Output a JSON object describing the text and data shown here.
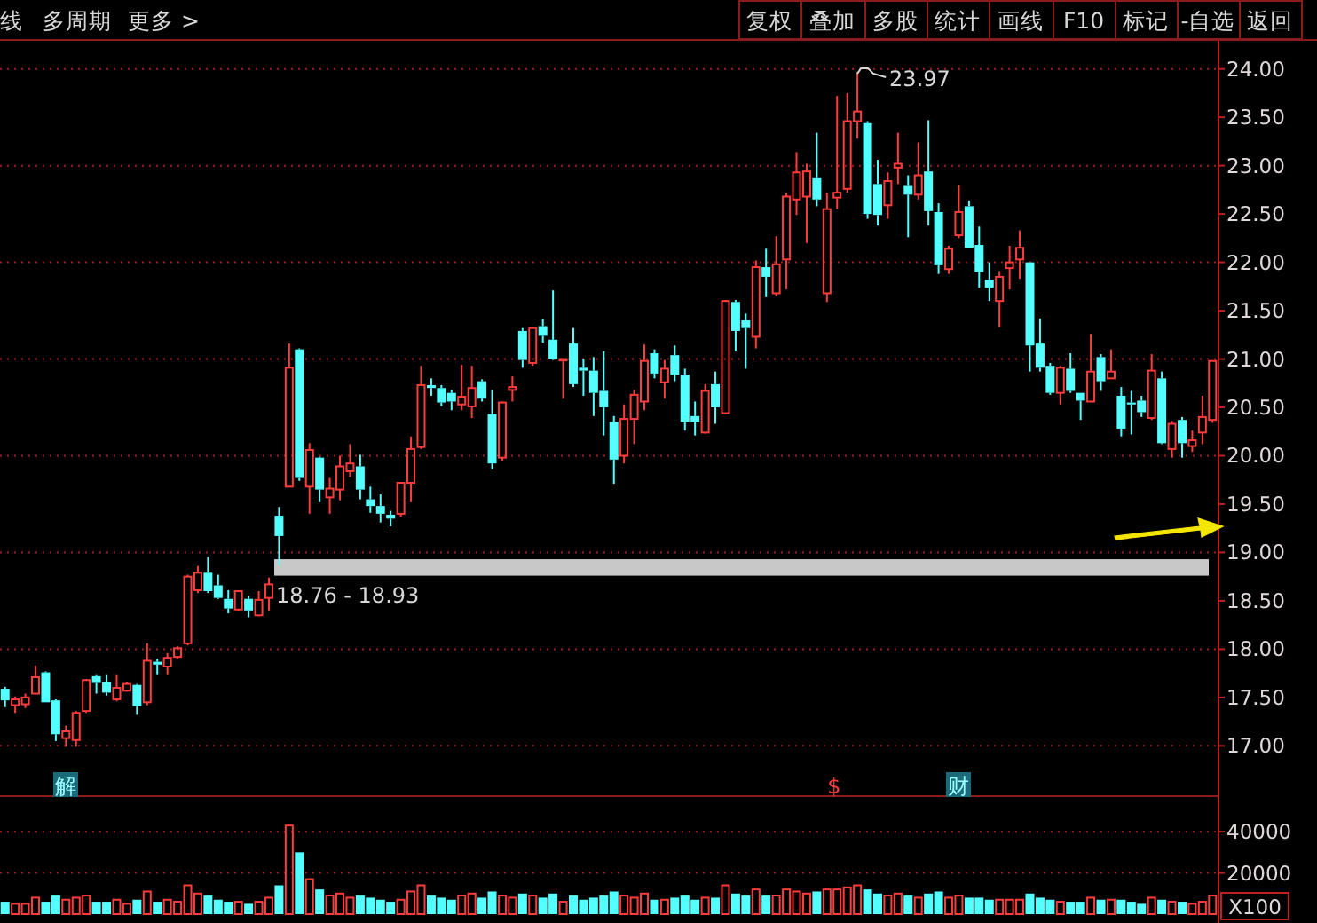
{
  "chart_data": [
    {
      "type": "candlestick",
      "colors": [
        "#54ffff",
        "#ff3c3c",
        "#ff3c3c",
        "#ff3c3c",
        "#54ffff",
        "#54ffff",
        "#ff3c3c",
        "#ff3c3c",
        "#ff3c3c",
        "#54ffff",
        "#54ffff",
        "#ff3c3c",
        "#ff3c3c",
        "#54ffff",
        "#ff3c3c",
        "#54ffff",
        "#ff3c3c",
        "#ff3c3c",
        "#ff3c3c",
        "#ff3c3c",
        "#54ffff",
        "#54ffff",
        "#54ffff",
        "#ff3c3c",
        "#54ffff",
        "#ff3c3c",
        "#ff3c3c",
        "#54ffff",
        "#ff3c3c",
        "#54ffff",
        "#ff3c3c",
        "#54ffff",
        "#ff3c3c",
        "#ff3c3c",
        "#ff3c3c",
        "#54ffff",
        "#54ffff",
        "#54ffff",
        "#54ffff",
        "#ff3c3c",
        "#ff3c3c",
        "#ff3c3c",
        "#54ffff",
        "#54ffff",
        "#54ffff",
        "#ff3c3c",
        "#ff3c3c",
        "#54ffff",
        "#54ffff",
        "#ff3c3c",
        "#ff3c3c",
        "#54ffff",
        "#ff3c3c",
        "#54ffff",
        "#54ffff",
        "#ff3c3c",
        "#54ffff",
        "#54ffff",
        "#54ffff",
        "#54ffff",
        "#54ffff",
        "#ff3c3c",
        "#ff3c3c",
        "#ff3c3c",
        "#54ffff",
        "#ff3c3c",
        "#54ffff",
        "#54ffff",
        "#54ffff",
        "#ff3c3c",
        "#54ffff",
        "#ff3c3c",
        "#54ffff",
        "#54ffff",
        "#ff3c3c",
        "#54ffff",
        "#ff3c3c",
        "#ff3c3c",
        "#ff3c3c",
        "#ff3c3c",
        "#54ffff",
        "#ff3c3c",
        "#ff3c3c",
        "#ff3c3c",
        "#ff3c3c",
        "#54ffff",
        "#54ffff",
        "#ff3c3c",
        "#ff3c3c",
        "#54ffff",
        "#ff3c3c",
        "#54ffff",
        "#54ffff",
        "#ff3c3c",
        "#ff3c3c",
        "#54ffff",
        "#54ffff",
        "#54ffff",
        "#ff3c3c",
        "#ff3c3c",
        "#ff3c3c",
        "#54ffff",
        "#54ffff",
        "#54ffff",
        "#ff3c3c",
        "#54ffff",
        "#54ffff",
        "#ff3c3c",
        "#54ffff",
        "#ff3c3c",
        "#54ffff",
        "#54ffff",
        "#54ffff",
        "#ff3c3c",
        "#54ffff",
        "#ff3c3c",
        "#54ffff",
        "#ff3c3c",
        "#ff3c3c",
        "#ff3c3c"
      ],
      "categories": [
        null,
        null,
        null,
        null,
        null,
        null,
        null,
        null,
        null,
        null,
        null,
        null,
        null,
        null,
        null,
        null,
        null,
        null,
        null,
        null,
        null,
        null,
        null,
        null,
        null,
        null,
        null,
        null,
        null,
        null,
        null,
        null,
        null,
        null,
        null,
        null,
        null,
        null,
        null,
        null,
        null,
        null,
        null,
        null,
        null,
        null,
        null,
        null,
        null,
        null,
        null,
        null,
        null,
        null,
        null,
        null,
        null,
        null,
        null,
        null,
        null,
        null,
        null,
        null,
        null,
        null,
        null,
        null,
        null,
        null,
        null,
        null,
        null,
        null,
        null,
        null,
        null,
        null,
        null,
        null,
        null,
        null,
        null,
        null,
        null,
        null,
        null,
        null,
        null,
        null,
        null,
        null,
        null,
        null,
        null,
        null,
        null,
        null,
        null,
        null,
        null,
        null,
        null,
        null,
        null,
        null,
        null,
        null,
        null,
        null,
        null,
        null,
        null,
        null,
        null,
        null,
        null,
        null,
        null,
        null
      ],
      "ohlc": [
        [
          17.59,
          17.61,
          17.4,
          17.47
        ],
        [
          17.42,
          17.51,
          17.34,
          17.48
        ],
        [
          17.43,
          17.54,
          17.39,
          17.5
        ],
        [
          17.54,
          17.83,
          17.54,
          17.71
        ],
        [
          17.76,
          17.77,
          17.45,
          17.45
        ],
        [
          17.47,
          17.48,
          17.05,
          17.12
        ],
        [
          17.08,
          17.21,
          16.99,
          17.15
        ],
        [
          17.06,
          17.36,
          16.99,
          17.34
        ],
        [
          17.36,
          17.69,
          17.34,
          17.68
        ],
        [
          17.72,
          17.74,
          17.54,
          17.65
        ],
        [
          17.66,
          17.74,
          17.52,
          17.55
        ],
        [
          17.48,
          17.74,
          17.46,
          17.6
        ],
        [
          17.57,
          17.66,
          17.56,
          17.64
        ],
        [
          17.63,
          17.64,
          17.32,
          17.41
        ],
        [
          17.45,
          18.06,
          17.42,
          17.88
        ],
        [
          17.87,
          17.9,
          17.74,
          17.84
        ],
        [
          17.82,
          17.96,
          17.74,
          17.91
        ],
        [
          17.92,
          18.03,
          17.9,
          18.01
        ],
        [
          18.06,
          18.77,
          18.04,
          18.75
        ],
        [
          18.61,
          18.86,
          18.58,
          18.79
        ],
        [
          18.79,
          18.95,
          18.58,
          18.6
        ],
        [
          18.66,
          18.77,
          18.52,
          18.53
        ],
        [
          18.52,
          18.61,
          18.37,
          18.42
        ],
        [
          18.41,
          18.61,
          18.4,
          18.6
        ],
        [
          18.52,
          18.55,
          18.33,
          18.4
        ],
        [
          18.35,
          18.6,
          18.34,
          18.51
        ],
        [
          18.53,
          18.74,
          18.4,
          18.67
        ],
        [
          19.38,
          19.47,
          18.86,
          19.17
        ],
        [
          19.68,
          21.16,
          19.68,
          20.91
        ],
        [
          21.1,
          21.11,
          19.74,
          19.77
        ],
        [
          19.68,
          20.13,
          19.4,
          20.06
        ],
        [
          19.98,
          19.99,
          19.52,
          19.65
        ],
        [
          19.57,
          19.77,
          19.4,
          19.66
        ],
        [
          19.65,
          20.0,
          19.54,
          19.89
        ],
        [
          19.84,
          20.12,
          19.78,
          19.92
        ],
        [
          19.89,
          20.01,
          19.55,
          19.65
        ],
        [
          19.55,
          19.68,
          19.41,
          19.48
        ],
        [
          19.48,
          19.6,
          19.31,
          19.4
        ],
        [
          19.39,
          19.43,
          19.27,
          19.35
        ],
        [
          19.4,
          19.72,
          19.37,
          19.72
        ],
        [
          19.72,
          20.2,
          19.52,
          20.07
        ],
        [
          20.09,
          20.93,
          20.07,
          20.73
        ],
        [
          20.73,
          20.8,
          20.62,
          20.7
        ],
        [
          20.7,
          20.73,
          20.51,
          20.55
        ],
        [
          20.65,
          20.68,
          20.47,
          20.56
        ],
        [
          20.53,
          20.94,
          20.47,
          20.61
        ],
        [
          20.51,
          20.93,
          20.39,
          20.7
        ],
        [
          20.77,
          20.79,
          20.56,
          20.59
        ],
        [
          20.43,
          20.68,
          19.86,
          19.92
        ],
        [
          19.98,
          20.56,
          19.95,
          20.55
        ],
        [
          20.68,
          20.82,
          20.56,
          20.71
        ],
        [
          21.29,
          21.32,
          20.91,
          20.99
        ],
        [
          20.96,
          21.32,
          20.93,
          21.32
        ],
        [
          21.34,
          21.41,
          21.17,
          21.24
        ],
        [
          21.2,
          21.71,
          20.99,
          21.0
        ],
        [
          21.0,
          21.0,
          20.59,
          21.0
        ],
        [
          21.16,
          21.32,
          20.71,
          20.74
        ],
        [
          20.91,
          21.0,
          20.62,
          20.88
        ],
        [
          20.88,
          21.02,
          20.41,
          20.65
        ],
        [
          20.67,
          21.08,
          20.21,
          20.5
        ],
        [
          20.35,
          20.41,
          19.71,
          19.96
        ],
        [
          20.0,
          20.53,
          19.92,
          20.38
        ],
        [
          20.38,
          20.68,
          20.12,
          20.63
        ],
        [
          20.56,
          21.15,
          20.47,
          20.98
        ],
        [
          21.06,
          21.1,
          20.8,
          20.85
        ],
        [
          20.76,
          20.99,
          20.59,
          20.9
        ],
        [
          21.04,
          21.14,
          20.77,
          20.84
        ],
        [
          20.84,
          20.9,
          20.26,
          20.35
        ],
        [
          20.41,
          20.56,
          20.21,
          20.35
        ],
        [
          20.24,
          20.74,
          20.23,
          20.67
        ],
        [
          20.74,
          20.87,
          20.33,
          20.5
        ],
        [
          20.44,
          21.61,
          20.43,
          21.6
        ],
        [
          21.59,
          21.61,
          21.08,
          21.29
        ],
        [
          21.4,
          21.47,
          20.9,
          21.32
        ],
        [
          21.23,
          22.02,
          21.11,
          21.95
        ],
        [
          21.95,
          22.14,
          21.64,
          21.85
        ],
        [
          21.68,
          22.27,
          21.65,
          21.98
        ],
        [
          22.03,
          22.72,
          21.72,
          22.68
        ],
        [
          22.65,
          23.14,
          22.49,
          22.93
        ],
        [
          22.68,
          23.02,
          22.2,
          22.94
        ],
        [
          22.87,
          23.34,
          22.58,
          22.65
        ],
        [
          21.68,
          22.72,
          21.59,
          22.55
        ],
        [
          22.67,
          23.72,
          22.55,
          22.72
        ],
        [
          22.76,
          23.75,
          22.72,
          23.46
        ],
        [
          23.46,
          23.97,
          23.28,
          23.56
        ],
        [
          23.44,
          23.46,
          22.45,
          22.5
        ],
        [
          22.81,
          23.06,
          22.38,
          22.49
        ],
        [
          22.59,
          22.93,
          22.45,
          22.84
        ],
        [
          22.98,
          23.34,
          22.81,
          23.02
        ],
        [
          22.79,
          22.9,
          22.26,
          22.7
        ],
        [
          22.7,
          23.24,
          22.65,
          22.9
        ],
        [
          22.94,
          23.47,
          22.38,
          22.53
        ],
        [
          22.52,
          22.61,
          21.88,
          21.97
        ],
        [
          21.93,
          22.17,
          21.88,
          22.14
        ],
        [
          22.28,
          22.8,
          22.25,
          22.52
        ],
        [
          22.58,
          22.64,
          22.15,
          22.15
        ],
        [
          22.18,
          22.37,
          21.74,
          21.9
        ],
        [
          21.82,
          22.0,
          21.6,
          21.74
        ],
        [
          21.6,
          21.91,
          21.33,
          21.85
        ],
        [
          21.94,
          22.17,
          21.72,
          22.0
        ],
        [
          22.03,
          22.33,
          21.83,
          22.15
        ],
        [
          22.0,
          22.0,
          20.87,
          21.14
        ],
        [
          21.16,
          21.42,
          20.87,
          20.91
        ],
        [
          20.93,
          20.96,
          20.63,
          20.65
        ],
        [
          20.65,
          20.93,
          20.53,
          20.91
        ],
        [
          20.9,
          21.06,
          20.65,
          20.67
        ],
        [
          20.65,
          20.65,
          20.37,
          20.57
        ],
        [
          20.56,
          21.26,
          20.56,
          20.87
        ],
        [
          21.02,
          21.05,
          20.67,
          20.77
        ],
        [
          20.8,
          21.1,
          20.8,
          20.87
        ],
        [
          20.62,
          20.71,
          20.2,
          20.28
        ],
        [
          20.55,
          20.67,
          20.22,
          20.53
        ],
        [
          20.57,
          20.62,
          20.4,
          20.45
        ],
        [
          20.39,
          21.05,
          20.37,
          20.88
        ],
        [
          20.8,
          20.87,
          20.12,
          20.13
        ],
        [
          20.07,
          20.36,
          19.98,
          20.33
        ],
        [
          20.37,
          20.4,
          19.98,
          20.13
        ],
        [
          20.1,
          20.26,
          20.04,
          20.16
        ],
        [
          20.24,
          20.62,
          20.12,
          20.4
        ],
        [
          20.37,
          20.98,
          20.34,
          20.98
        ]
      ],
      "ylim": [
        16.48,
        24.3
      ],
      "yticks": [
        {
          "value": 17,
          "label": "17.00"
        },
        {
          "value": 17.5,
          "label": "17.50"
        },
        {
          "value": 18,
          "label": "18.00"
        },
        {
          "value": 18.5,
          "label": "18.50"
        },
        {
          "value": 19,
          "label": "19.00"
        },
        {
          "value": 19.5,
          "label": "19.50"
        },
        {
          "value": 20,
          "label": "20.00"
        },
        {
          "value": 20.5,
          "label": "20.50"
        },
        {
          "value": 21,
          "label": "21.00"
        },
        {
          "value": 21.5,
          "label": "21.50"
        },
        {
          "value": 22,
          "label": "22.00"
        },
        {
          "value": 22.5,
          "label": "22.50"
        },
        {
          "value": 23,
          "label": "23.00"
        },
        {
          "value": 23.5,
          "label": "23.50"
        },
        {
          "value": 24,
          "label": "24.00"
        }
      ],
      "grid": "y",
      "bands": [
        {
          "axis": "y",
          "from": 18.76,
          "to": 18.93,
          "label": "18.76 - 18.93",
          "color": "#c8c8c8"
        }
      ],
      "annotations": [
        "线",
        "多周期",
        "更多 >",
        "复权",
        "叠加",
        "多股",
        "统计",
        "画线",
        "F10",
        "标记",
        "-自选",
        "返回",
        "23.97",
        "解",
        "$",
        "财"
      ]
    },
    {
      "type": "bar",
      "colors": [
        "#54ffff",
        "#ff3c3c",
        "#ff3c3c",
        "#ff3c3c",
        "#54ffff",
        "#54ffff",
        "#ff3c3c",
        "#ff3c3c",
        "#ff3c3c",
        "#54ffff",
        "#54ffff",
        "#ff3c3c",
        "#ff3c3c",
        "#54ffff",
        "#ff3c3c",
        "#54ffff",
        "#ff3c3c",
        "#ff3c3c",
        "#ff3c3c",
        "#ff3c3c",
        "#54ffff",
        "#54ffff",
        "#54ffff",
        "#ff3c3c",
        "#54ffff",
        "#ff3c3c",
        "#ff3c3c",
        "#54ffff",
        "#ff3c3c",
        "#54ffff",
        "#ff3c3c",
        "#54ffff",
        "#ff3c3c",
        "#ff3c3c",
        "#ff3c3c",
        "#54ffff",
        "#54ffff",
        "#54ffff",
        "#54ffff",
        "#ff3c3c",
        "#ff3c3c",
        "#ff3c3c",
        "#54ffff",
        "#54ffff",
        "#54ffff",
        "#ff3c3c",
        "#ff3c3c",
        "#54ffff",
        "#54ffff",
        "#ff3c3c",
        "#ff3c3c",
        "#54ffff",
        "#ff3c3c",
        "#54ffff",
        "#54ffff",
        "#ff3c3c",
        "#54ffff",
        "#54ffff",
        "#54ffff",
        "#54ffff",
        "#54ffff",
        "#ff3c3c",
        "#ff3c3c",
        "#ff3c3c",
        "#54ffff",
        "#ff3c3c",
        "#54ffff",
        "#54ffff",
        "#54ffff",
        "#ff3c3c",
        "#54ffff",
        "#ff3c3c",
        "#54ffff",
        "#54ffff",
        "#ff3c3c",
        "#54ffff",
        "#ff3c3c",
        "#ff3c3c",
        "#ff3c3c",
        "#ff3c3c",
        "#54ffff",
        "#ff3c3c",
        "#ff3c3c",
        "#ff3c3c",
        "#ff3c3c",
        "#54ffff",
        "#54ffff",
        "#ff3c3c",
        "#ff3c3c",
        "#54ffff",
        "#ff3c3c",
        "#54ffff",
        "#54ffff",
        "#ff3c3c",
        "#ff3c3c",
        "#54ffff",
        "#54ffff",
        "#54ffff",
        "#ff3c3c",
        "#ff3c3c",
        "#ff3c3c",
        "#54ffff",
        "#54ffff",
        "#54ffff",
        "#ff3c3c",
        "#54ffff",
        "#54ffff",
        "#ff3c3c",
        "#54ffff",
        "#ff3c3c",
        "#54ffff",
        "#54ffff",
        "#54ffff",
        "#ff3c3c",
        "#54ffff",
        "#ff3c3c",
        "#54ffff",
        "#ff3c3c",
        "#ff3c3c",
        "#ff3c3c"
      ],
      "categories": [
        null,
        null,
        null,
        null,
        null,
        null,
        null,
        null,
        null,
        null,
        null,
        null,
        null,
        null,
        null,
        null,
        null,
        null,
        null,
        null,
        null,
        null,
        null,
        null,
        null,
        null,
        null,
        null,
        null,
        null,
        null,
        null,
        null,
        null,
        null,
        null,
        null,
        null,
        null,
        null,
        null,
        null,
        null,
        null,
        null,
        null,
        null,
        null,
        null,
        null,
        null,
        null,
        null,
        null,
        null,
        null,
        null,
        null,
        null,
        null,
        null,
        null,
        null,
        null,
        null,
        null,
        null,
        null,
        null,
        null,
        null,
        null,
        null,
        null,
        null,
        null,
        null,
        null,
        null,
        null,
        null,
        null,
        null,
        null,
        null,
        null,
        null,
        null,
        null,
        null,
        null,
        null,
        null,
        null,
        null,
        null,
        null,
        null,
        null,
        null,
        null,
        null,
        null,
        null,
        null,
        null,
        null,
        null,
        null,
        null,
        null,
        null,
        null,
        null,
        null,
        null,
        null,
        null,
        null,
        null
      ],
      "values": [
        6000,
        5000,
        5000,
        8000,
        6000,
        9000,
        7000,
        8000,
        9000,
        6000,
        6000,
        7000,
        5000,
        7000,
        11000,
        6000,
        7000,
        6000,
        14000,
        10000,
        9000,
        7000,
        6000,
        6000,
        5000,
        6000,
        8000,
        14000,
        43000,
        30000,
        17000,
        12000,
        9000,
        10000,
        8000,
        9000,
        8000,
        7000,
        6000,
        7000,
        11000,
        14000,
        9000,
        8000,
        7000,
        9000,
        10000,
        8000,
        11000,
        9000,
        8000,
        10000,
        9000,
        8000,
        10000,
        6000,
        9000,
        7000,
        8000,
        9000,
        11000,
        9000,
        8000,
        10000,
        7000,
        7000,
        8000,
        9000,
        7000,
        8000,
        8000,
        14000,
        10000,
        9000,
        12000,
        9000,
        9000,
        12000,
        11000,
        10000,
        11000,
        12000,
        12000,
        13000,
        14000,
        12000,
        10000,
        9000,
        10000,
        9000,
        8000,
        10000,
        11000,
        8000,
        9000,
        8000,
        8000,
        7000,
        7000,
        7000,
        7000,
        10000,
        8000,
        7000,
        6000,
        6000,
        6000,
        8000,
        7000,
        7000,
        7000,
        6000,
        5000,
        8000,
        7000,
        6000,
        6000,
        5000,
        6000,
        9000
      ],
      "ylim": [
        0,
        56000
      ],
      "yticks": [
        20000,
        40000
      ],
      "grid": "y",
      "annotations": [
        "X100"
      ]
    }
  ]
}
